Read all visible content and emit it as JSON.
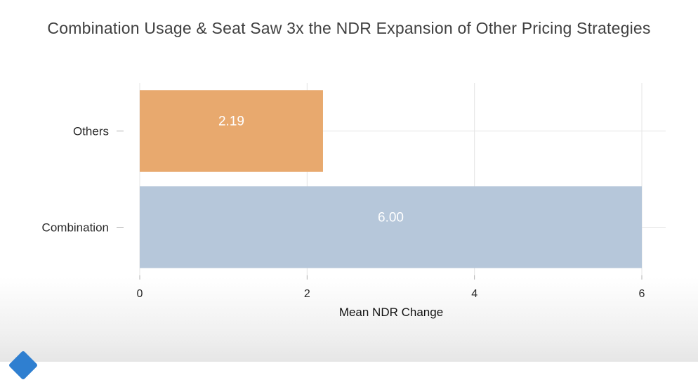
{
  "chart_data": {
    "type": "bar",
    "orientation": "horizontal",
    "title": "Combination Usage & Seat Saw 3x the NDR Expansion of Other Pricing Strategies",
    "categories": [
      "Others",
      "Combination"
    ],
    "values": [
      2.19,
      6.0
    ],
    "data_labels": [
      "2.19",
      "6.00"
    ],
    "colors": [
      "#e8a96e",
      "#b6c7da"
    ],
    "xlabel": "Mean NDR Change",
    "ylabel": "",
    "xlim": [
      0,
      6.3
    ],
    "xticks": [
      0,
      2,
      4,
      6
    ],
    "xtick_labels": [
      "0",
      "2",
      "4",
      "6"
    ],
    "grid": true,
    "legend": "none"
  }
}
